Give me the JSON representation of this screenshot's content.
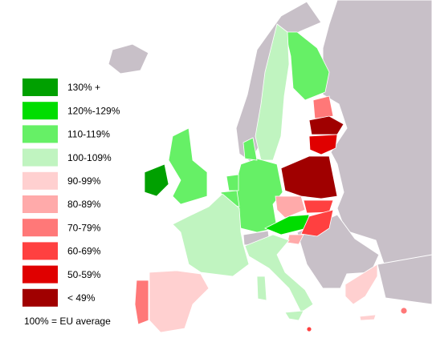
{
  "legend": {
    "items": [
      {
        "label": "130% +",
        "color": "#00a000"
      },
      {
        "label": "120%-129%",
        "color": "#00dd00"
      },
      {
        "label": "110-119%",
        "color": "#66f066"
      },
      {
        "label": "100-109%",
        "color": "#c0f4c0"
      },
      {
        "label": "90-99%",
        "color": "#ffd0d0"
      },
      {
        "label": "80-89%",
        "color": "#ffaaaa"
      },
      {
        "label": "70-79%",
        "color": "#ff7878"
      },
      {
        "label": "60-69%",
        "color": "#ff4040"
      },
      {
        "label": "50-59%",
        "color": "#e00000"
      },
      {
        "label": "< 49%",
        "color": "#a00000"
      }
    ],
    "note": "100% = EU average"
  }
}
